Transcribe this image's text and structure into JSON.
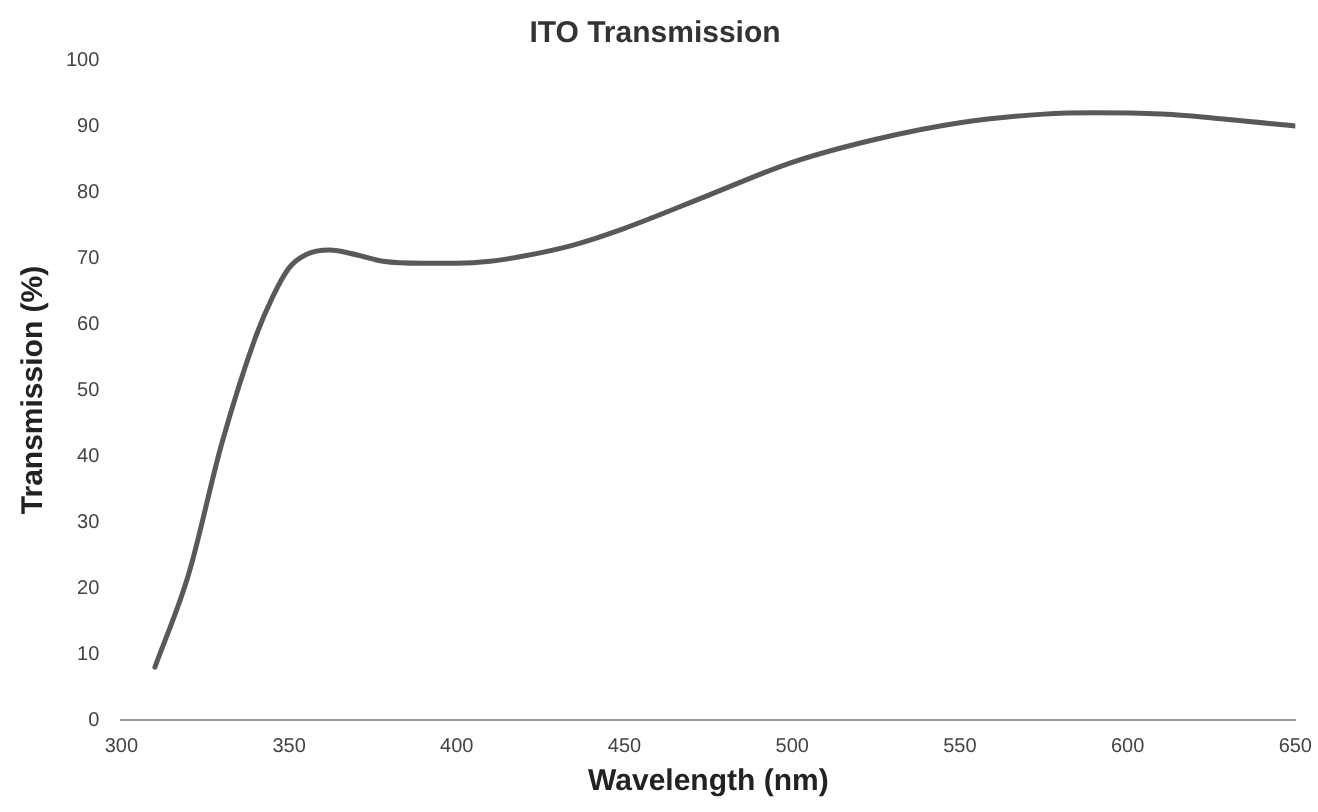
{
  "chart_data": {
    "type": "line",
    "title": "ITO Transmission",
    "xlabel": "Wavelength (nm)",
    "ylabel": "Transmission (%)",
    "x": [
      310,
      320,
      330,
      340,
      345,
      350,
      355,
      362,
      370,
      378,
      390,
      400,
      410,
      420,
      435,
      450,
      475,
      500,
      525,
      550,
      575,
      590,
      610,
      630,
      650
    ],
    "series": [
      {
        "color": "#595959",
        "values": [
          8,
          22,
          42,
          58,
          64,
          68.5,
          70.5,
          71.2,
          70.5,
          69.5,
          69.2,
          69.2,
          69.5,
          70.3,
          72,
          74.5,
          79.5,
          84.5,
          88,
          90.5,
          91.8,
          92,
          91.8,
          91,
          90
        ]
      }
    ],
    "xlim": [
      300,
      650
    ],
    "xticks": [
      300,
      350,
      400,
      450,
      500,
      550,
      600,
      650
    ],
    "ylim": [
      0,
      100
    ],
    "yticks": [
      0,
      10,
      20,
      30,
      40,
      50,
      60,
      70,
      80,
      90,
      100
    ],
    "grid": false,
    "legend": false,
    "marker": "none",
    "line_style": "solid"
  }
}
